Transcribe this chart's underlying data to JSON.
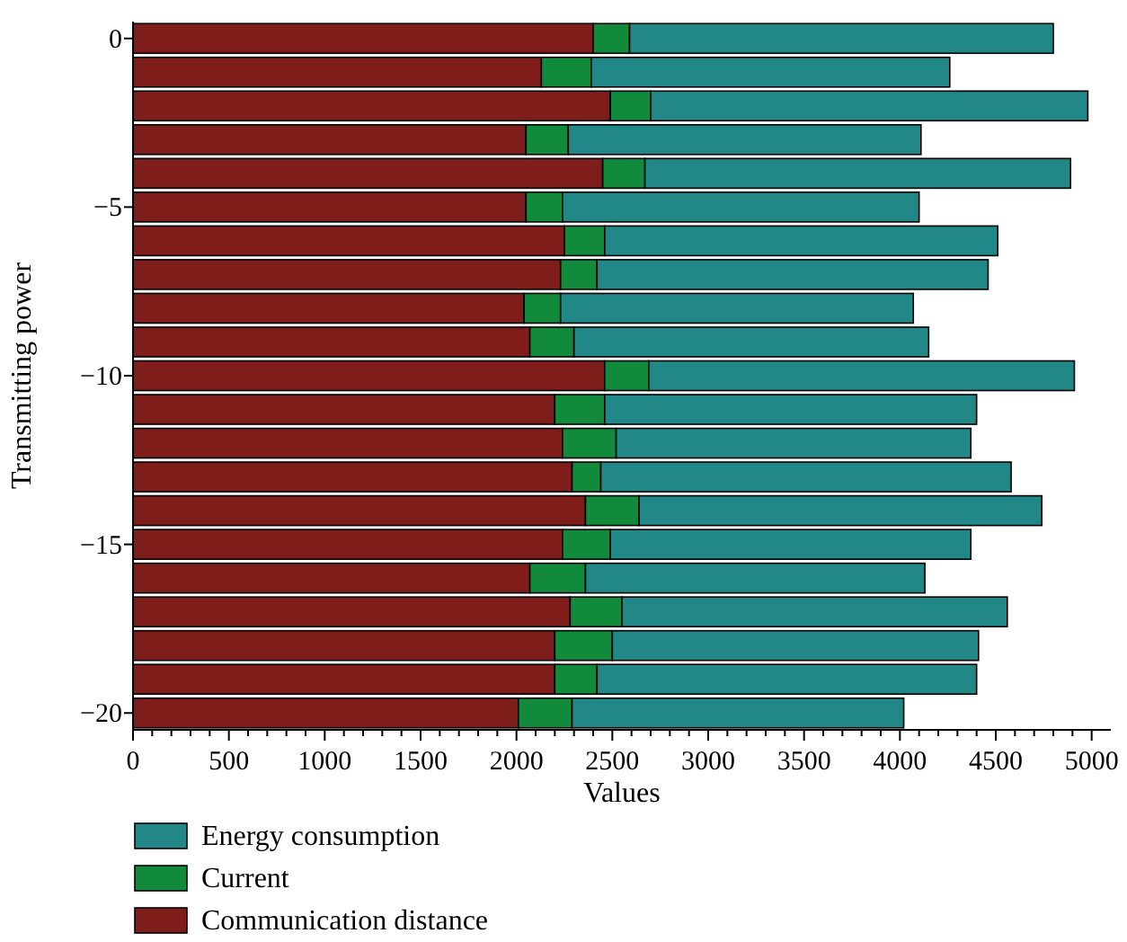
{
  "chart_data": {
    "type": "bar",
    "orientation": "horizontal",
    "stacked": true,
    "xlabel": "Values",
    "ylabel": "Transmitting power",
    "categories": [
      "0",
      null,
      null,
      null,
      null,
      "−5",
      null,
      null,
      null,
      null,
      "−10",
      null,
      null,
      null,
      null,
      "−15",
      null,
      null,
      null,
      null,
      "−20"
    ],
    "series": [
      {
        "name": "Communication distance",
        "color": "#7f1d1a",
        "values": [
          2400,
          2130,
          2490,
          2050,
          2450,
          2050,
          2250,
          2230,
          2040,
          2070,
          2460,
          2200,
          2240,
          2290,
          2360,
          2240,
          2070,
          2280,
          2200,
          2200,
          2010
        ]
      },
      {
        "name": "Current",
        "color": "#118a3b",
        "values": [
          190,
          260,
          210,
          220,
          220,
          190,
          210,
          190,
          190,
          230,
          230,
          260,
          280,
          150,
          280,
          250,
          290,
          270,
          300,
          220,
          280
        ]
      },
      {
        "name": "Energy consumption",
        "color": "#218787",
        "values": [
          2210,
          1870,
          2280,
          1840,
          2220,
          1860,
          2050,
          2040,
          1840,
          1850,
          2220,
          1940,
          1850,
          2140,
          2100,
          1880,
          1770,
          2010,
          1910,
          1980,
          1730
        ]
      }
    ],
    "xlim": [
      0,
      5100
    ],
    "xticks": [
      0,
      {
        "value": 100,
        "label": null
      },
      {
        "value": 200,
        "label": null
      },
      {
        "value": 300,
        "label": null
      },
      {
        "value": 400,
        "label": null
      },
      500,
      {
        "value": 600,
        "label": null
      },
      {
        "value": 700,
        "label": null
      },
      {
        "value": 800,
        "label": null
      },
      {
        "value": 900,
        "label": null
      },
      1000,
      {
        "value": 1100,
        "label": null
      },
      {
        "value": 1200,
        "label": null
      },
      {
        "value": 1300,
        "label": null
      },
      {
        "value": 1400,
        "label": null
      },
      1500,
      {
        "value": 1600,
        "label": null
      },
      {
        "value": 1700,
        "label": null
      },
      {
        "value": 1800,
        "label": null
      },
      {
        "value": 1900,
        "label": null
      },
      2000,
      {
        "value": 2100,
        "label": null
      },
      {
        "value": 2200,
        "label": null
      },
      {
        "value": 2300,
        "label": null
      },
      {
        "value": 2400,
        "label": null
      },
      2500,
      {
        "value": 2600,
        "label": null
      },
      {
        "value": 2700,
        "label": null
      },
      {
        "value": 2800,
        "label": null
      },
      {
        "value": 2900,
        "label": null
      },
      3000,
      {
        "value": 3100,
        "label": null
      },
      {
        "value": 3200,
        "label": null
      },
      {
        "value": 3300,
        "label": null
      },
      {
        "value": 3400,
        "label": null
      },
      3500,
      {
        "value": 3600,
        "label": null
      },
      {
        "value": 3700,
        "label": null
      },
      {
        "value": 3800,
        "label": null
      },
      {
        "value": 3900,
        "label": null
      },
      4000,
      {
        "value": 4100,
        "label": null
      },
      {
        "value": 4200,
        "label": null
      },
      {
        "value": 4300,
        "label": null
      },
      {
        "value": 4400,
        "label": null
      },
      4500,
      {
        "value": 4600,
        "label": null
      },
      {
        "value": 4700,
        "label": null
      },
      {
        "value": 4800,
        "label": null
      },
      {
        "value": 4900,
        "label": null
      },
      5000
    ],
    "grid": false,
    "legend": "bottom left"
  }
}
